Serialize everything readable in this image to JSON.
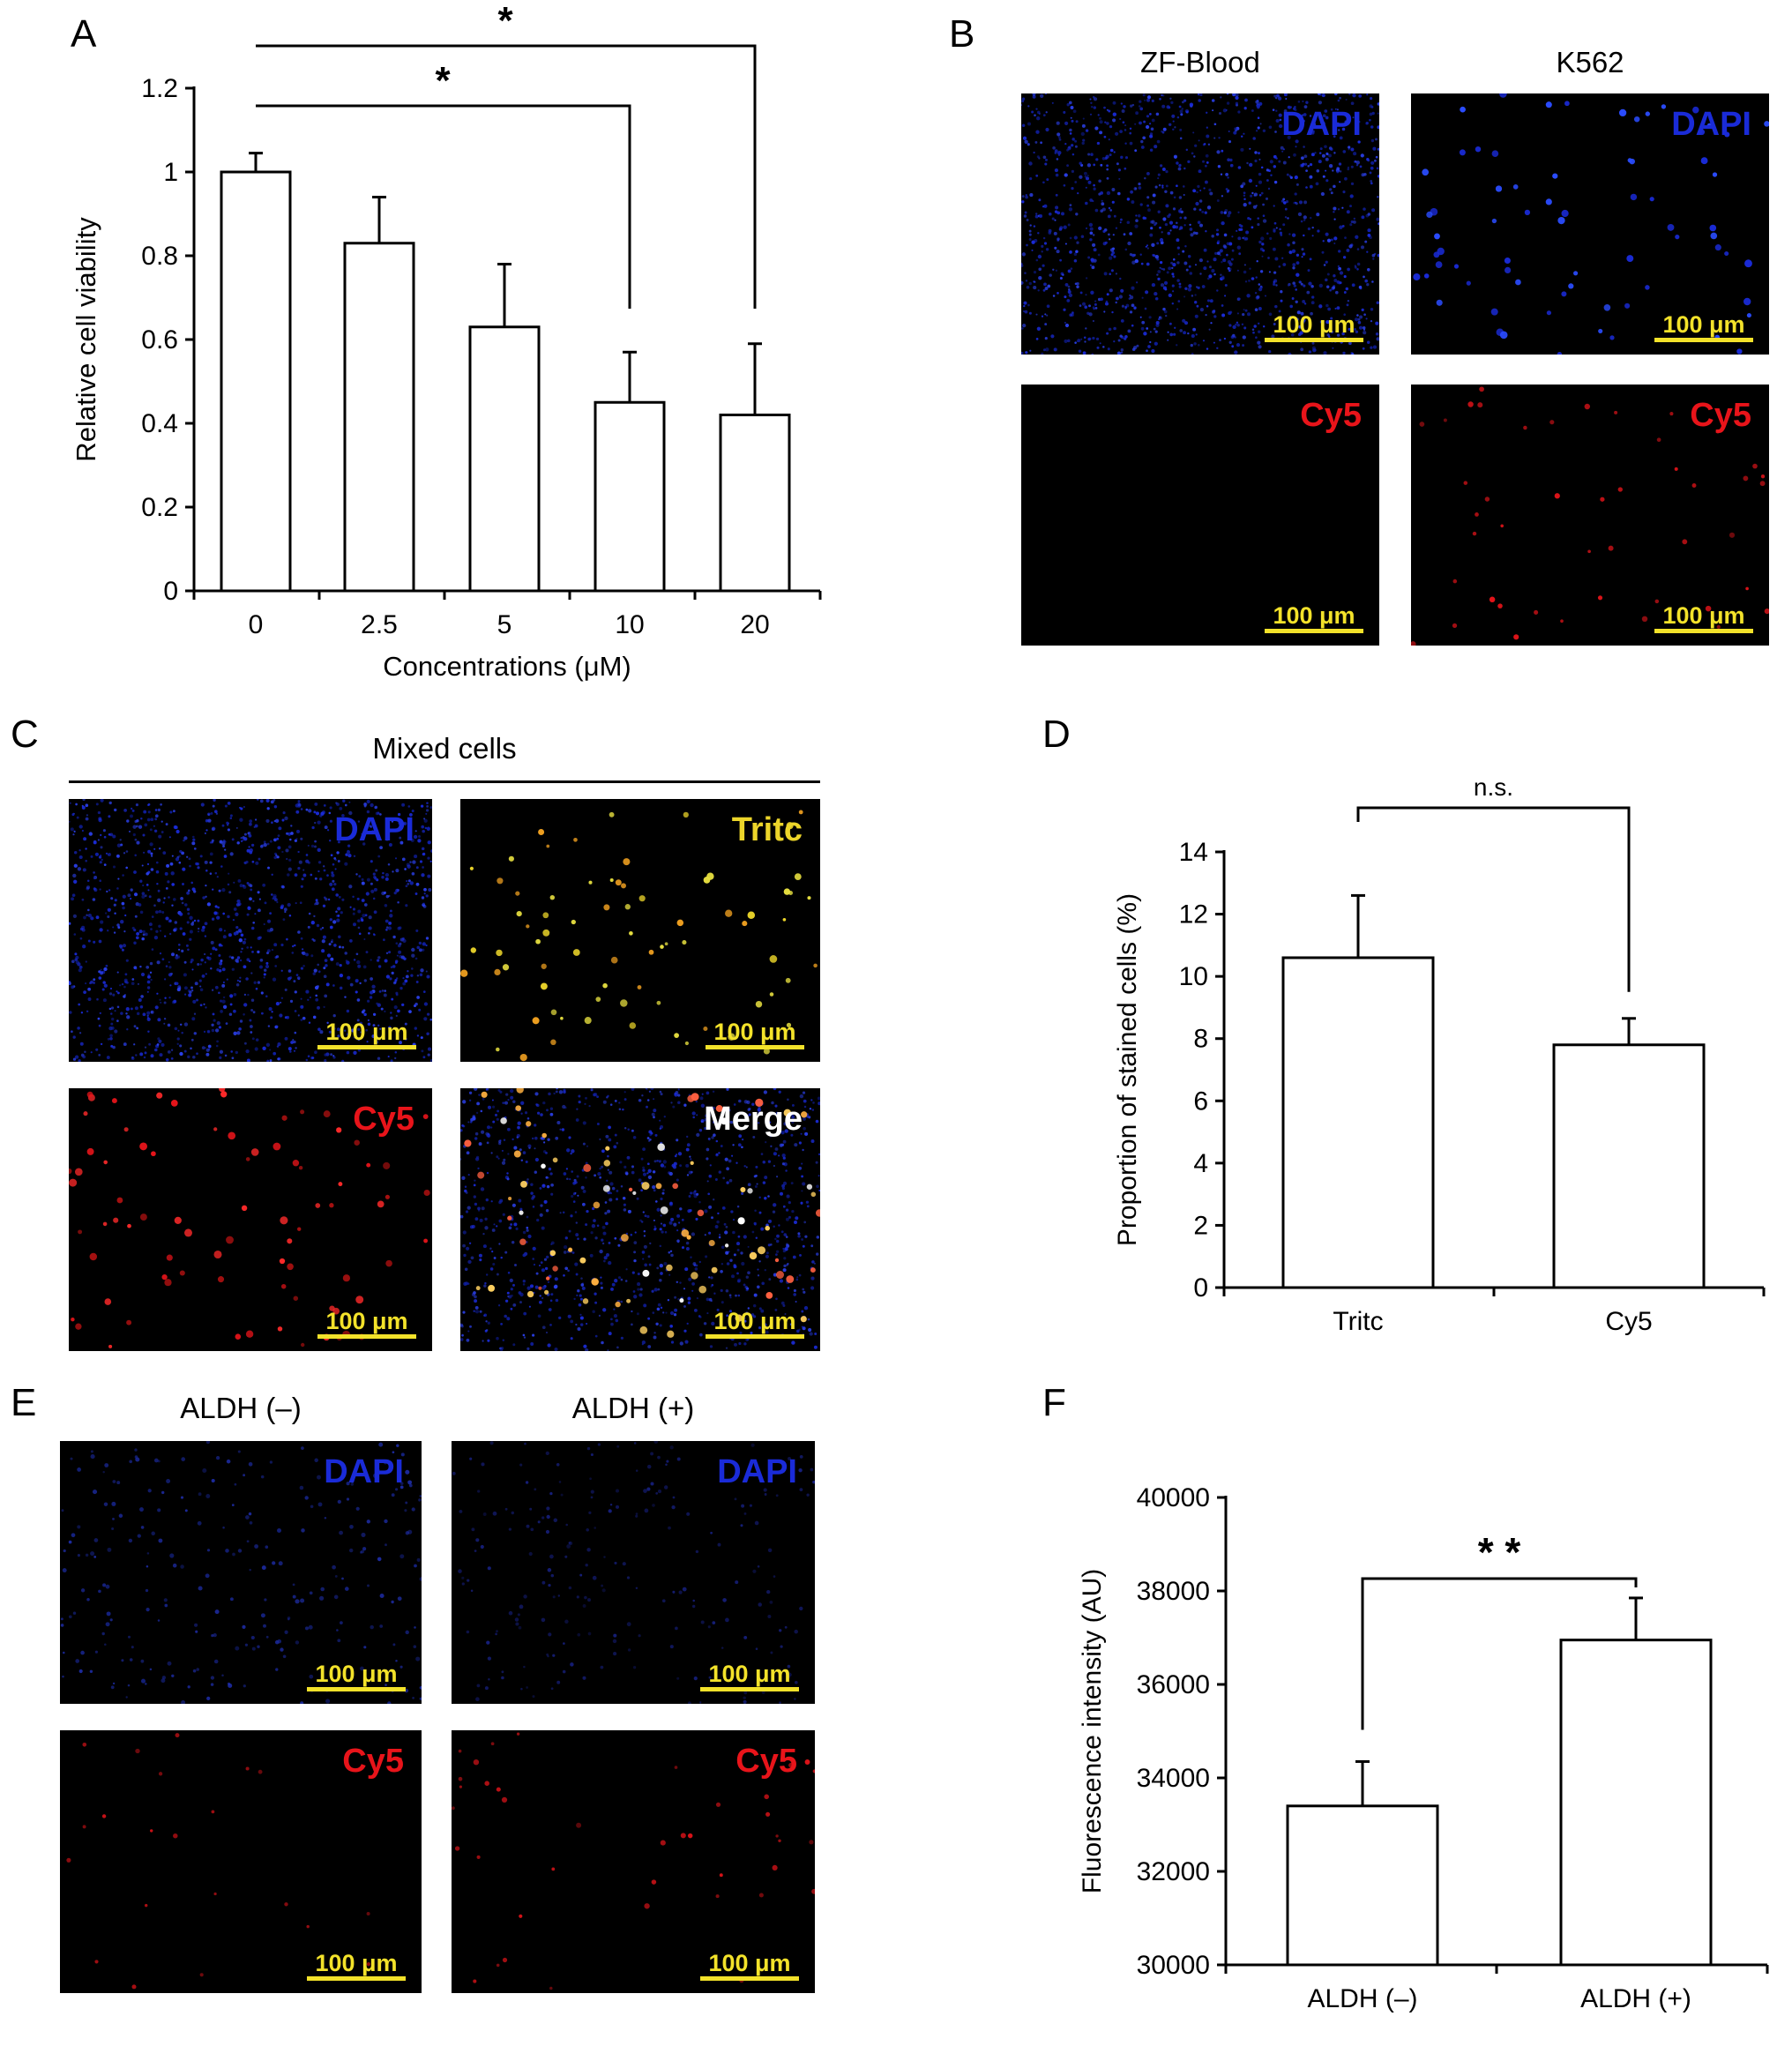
{
  "panels": {
    "A": "A",
    "B": "B",
    "C": "C",
    "D": "D",
    "E": "E",
    "F": "F"
  },
  "chart_data": [
    {
      "type": "bar",
      "panel": "A",
      "categories": [
        "0",
        "2.5",
        "5",
        "10",
        "20"
      ],
      "values": [
        1.0,
        0.83,
        0.63,
        0.45,
        0.42
      ],
      "errors": [
        0.045,
        0.11,
        0.15,
        0.12,
        0.17
      ],
      "xlabel": "Concentrations (μM)",
      "ylabel": "Relative cell viability",
      "ylim": [
        0,
        1.2
      ],
      "yticks": [
        "0",
        "0.2",
        "0.4",
        "0.6",
        "0.8",
        "1",
        "1.2"
      ],
      "significance": [
        {
          "from": 0,
          "to": 3,
          "label": "*"
        },
        {
          "from": 0,
          "to": 4,
          "label": "*"
        }
      ]
    },
    {
      "type": "bar",
      "panel": "D",
      "categories": [
        "Tritc",
        "Cy5"
      ],
      "values": [
        10.6,
        7.8
      ],
      "errors": [
        2.0,
        0.85
      ],
      "xlabel": "",
      "ylabel": "Proportion of stained cells (%)",
      "ylim": [
        0,
        14
      ],
      "yticks": [
        "0",
        "2",
        "4",
        "6",
        "8",
        "10",
        "12",
        "14"
      ],
      "significance": [
        {
          "from": 0,
          "to": 1,
          "label": "n.s."
        }
      ]
    },
    {
      "type": "bar",
      "panel": "F",
      "categories": [
        "ALDH (–)",
        "ALDH (+)"
      ],
      "values": [
        33400,
        36950
      ],
      "errors": [
        950,
        900
      ],
      "xlabel": "",
      "ylabel": "Fluorescence intensity (AU)",
      "ylim": [
        30000,
        40000
      ],
      "yticks": [
        "30000",
        "32000",
        "34000",
        "36000",
        "38000",
        "40000"
      ],
      "significance": [
        {
          "from": 0,
          "to": 1,
          "label": "* *"
        }
      ]
    }
  ],
  "panelB": {
    "col_titles": [
      "ZF-Blood",
      "K562"
    ],
    "stains": [
      "DAPI",
      "Cy5"
    ],
    "scale": "100 μm"
  },
  "panelC": {
    "title": "Mixed cells",
    "stains": [
      "DAPI",
      "Tritc",
      "Cy5",
      "Merge"
    ],
    "scale": "100 μm"
  },
  "panelE": {
    "col_titles": [
      "ALDH (–)",
      "ALDH (+)"
    ],
    "stains": [
      "DAPI",
      "Cy5"
    ],
    "scale": "100 μm"
  },
  "colors": {
    "dapi": "#1a2bd8",
    "cy5": "#e8141a",
    "tritc": "#ecd52a",
    "merge": "#ffffff",
    "scale": "#f3e22a"
  }
}
